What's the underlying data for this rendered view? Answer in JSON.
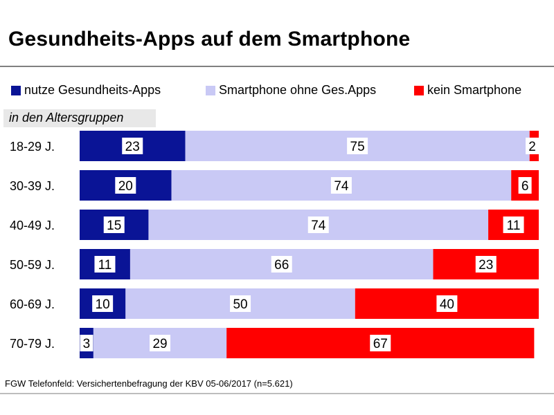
{
  "title": "Gesundheits-Apps auf dem Smartphone",
  "subtitle": "in den Altersgruppen",
  "source": "FGW Telefonfeld: Versichertenbefragung der KBV 05-06/2017 (n=5.621)",
  "colors": {
    "uses_health_apps": "#0a1496",
    "smartphone_without": "#c9c9f5",
    "no_smartphone": "#ff0000"
  },
  "chart_data": {
    "type": "bar",
    "orientation": "horizontal",
    "stacked": true,
    "categories": [
      "18-29 J.",
      "30-39 J.",
      "40-49 J.",
      "50-59 J.",
      "60-69 J.",
      "70-79 J."
    ],
    "series": [
      {
        "name": "nutze Gesundheits-Apps",
        "values": [
          23,
          20,
          15,
          11,
          10,
          3
        ]
      },
      {
        "name": "Smartphone ohne Ges.Apps",
        "values": [
          75,
          74,
          74,
          66,
          50,
          29
        ]
      },
      {
        "name": "kein Smartphone",
        "values": [
          2,
          6,
          11,
          23,
          40,
          67
        ]
      }
    ],
    "xlim": [
      0,
      100
    ],
    "grid": false,
    "legend_position": "top"
  }
}
